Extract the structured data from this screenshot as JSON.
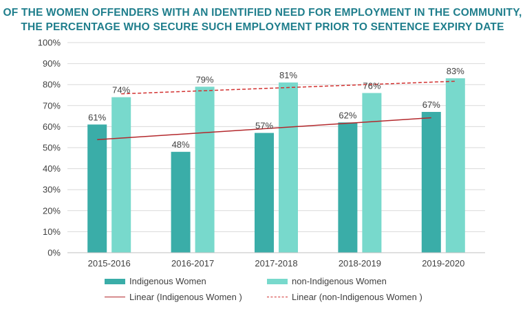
{
  "title_lines": [
    "OF THE WOMEN OFFENDERS WITH AN IDENTIFIED NEED FOR EMPLOYMENT IN THE COMMUNITY,",
    "THE PERCENTAGE WHO SECURE SUCH EMPLOYMENT PRIOR TO SENTENCE EXPIRY DATE"
  ],
  "legend": {
    "indigenous": "Indigenous Women",
    "non_indigenous": "non-Indigenous Women",
    "linear_indigenous": "Linear (Indigenous Women )",
    "linear_non_indigenous": "Linear (non-Indigenous Women )"
  },
  "colors": {
    "title": "#1f7e8c",
    "indigenous": "#3aada8",
    "non_indigenous": "#78d9cc",
    "trend_indigenous": "#b3272b",
    "trend_non_indigenous": "#d2302f",
    "grid": "#d9d9d9",
    "text": "#404040"
  },
  "chart_data": {
    "type": "bar",
    "title": "OF THE WOMEN OFFENDERS WITH AN IDENTIFIED NEED FOR EMPLOYMENT IN THE COMMUNITY, THE PERCENTAGE WHO SECURE SUCH EMPLOYMENT PRIOR TO SENTENCE EXPIRY DATE",
    "categories": [
      "2015-2016",
      "2016-2017",
      "2017-2018",
      "2018-2019",
      "2019-2020"
    ],
    "series": [
      {
        "name": "Indigenous Women",
        "values": [
          61,
          48,
          57,
          62,
          67
        ],
        "labels": [
          "61%",
          "48%",
          "57%",
          "62%",
          "67%"
        ]
      },
      {
        "name": "non-Indigenous Women",
        "values": [
          74,
          79,
          81,
          76,
          83
        ],
        "labels": [
          "74%",
          "79%",
          "81%",
          "76%",
          "83%"
        ]
      }
    ],
    "trendlines": [
      {
        "name": "Linear (Indigenous Women )",
        "series": "Indigenous Women",
        "type": "linear",
        "style": "solid"
      },
      {
        "name": "Linear (non-Indigenous Women )",
        "series": "non-Indigenous Women",
        "type": "linear",
        "style": "dashed"
      }
    ],
    "ylim": [
      0,
      100
    ],
    "yticks": [
      0,
      10,
      20,
      30,
      40,
      50,
      60,
      70,
      80,
      90,
      100
    ],
    "ytick_labels": [
      "0%",
      "10%",
      "20%",
      "30%",
      "40%",
      "50%",
      "60%",
      "70%",
      "80%",
      "90%",
      "100%"
    ],
    "xlabel": "",
    "ylabel": "",
    "grid": true,
    "legend_position": "bottom"
  }
}
